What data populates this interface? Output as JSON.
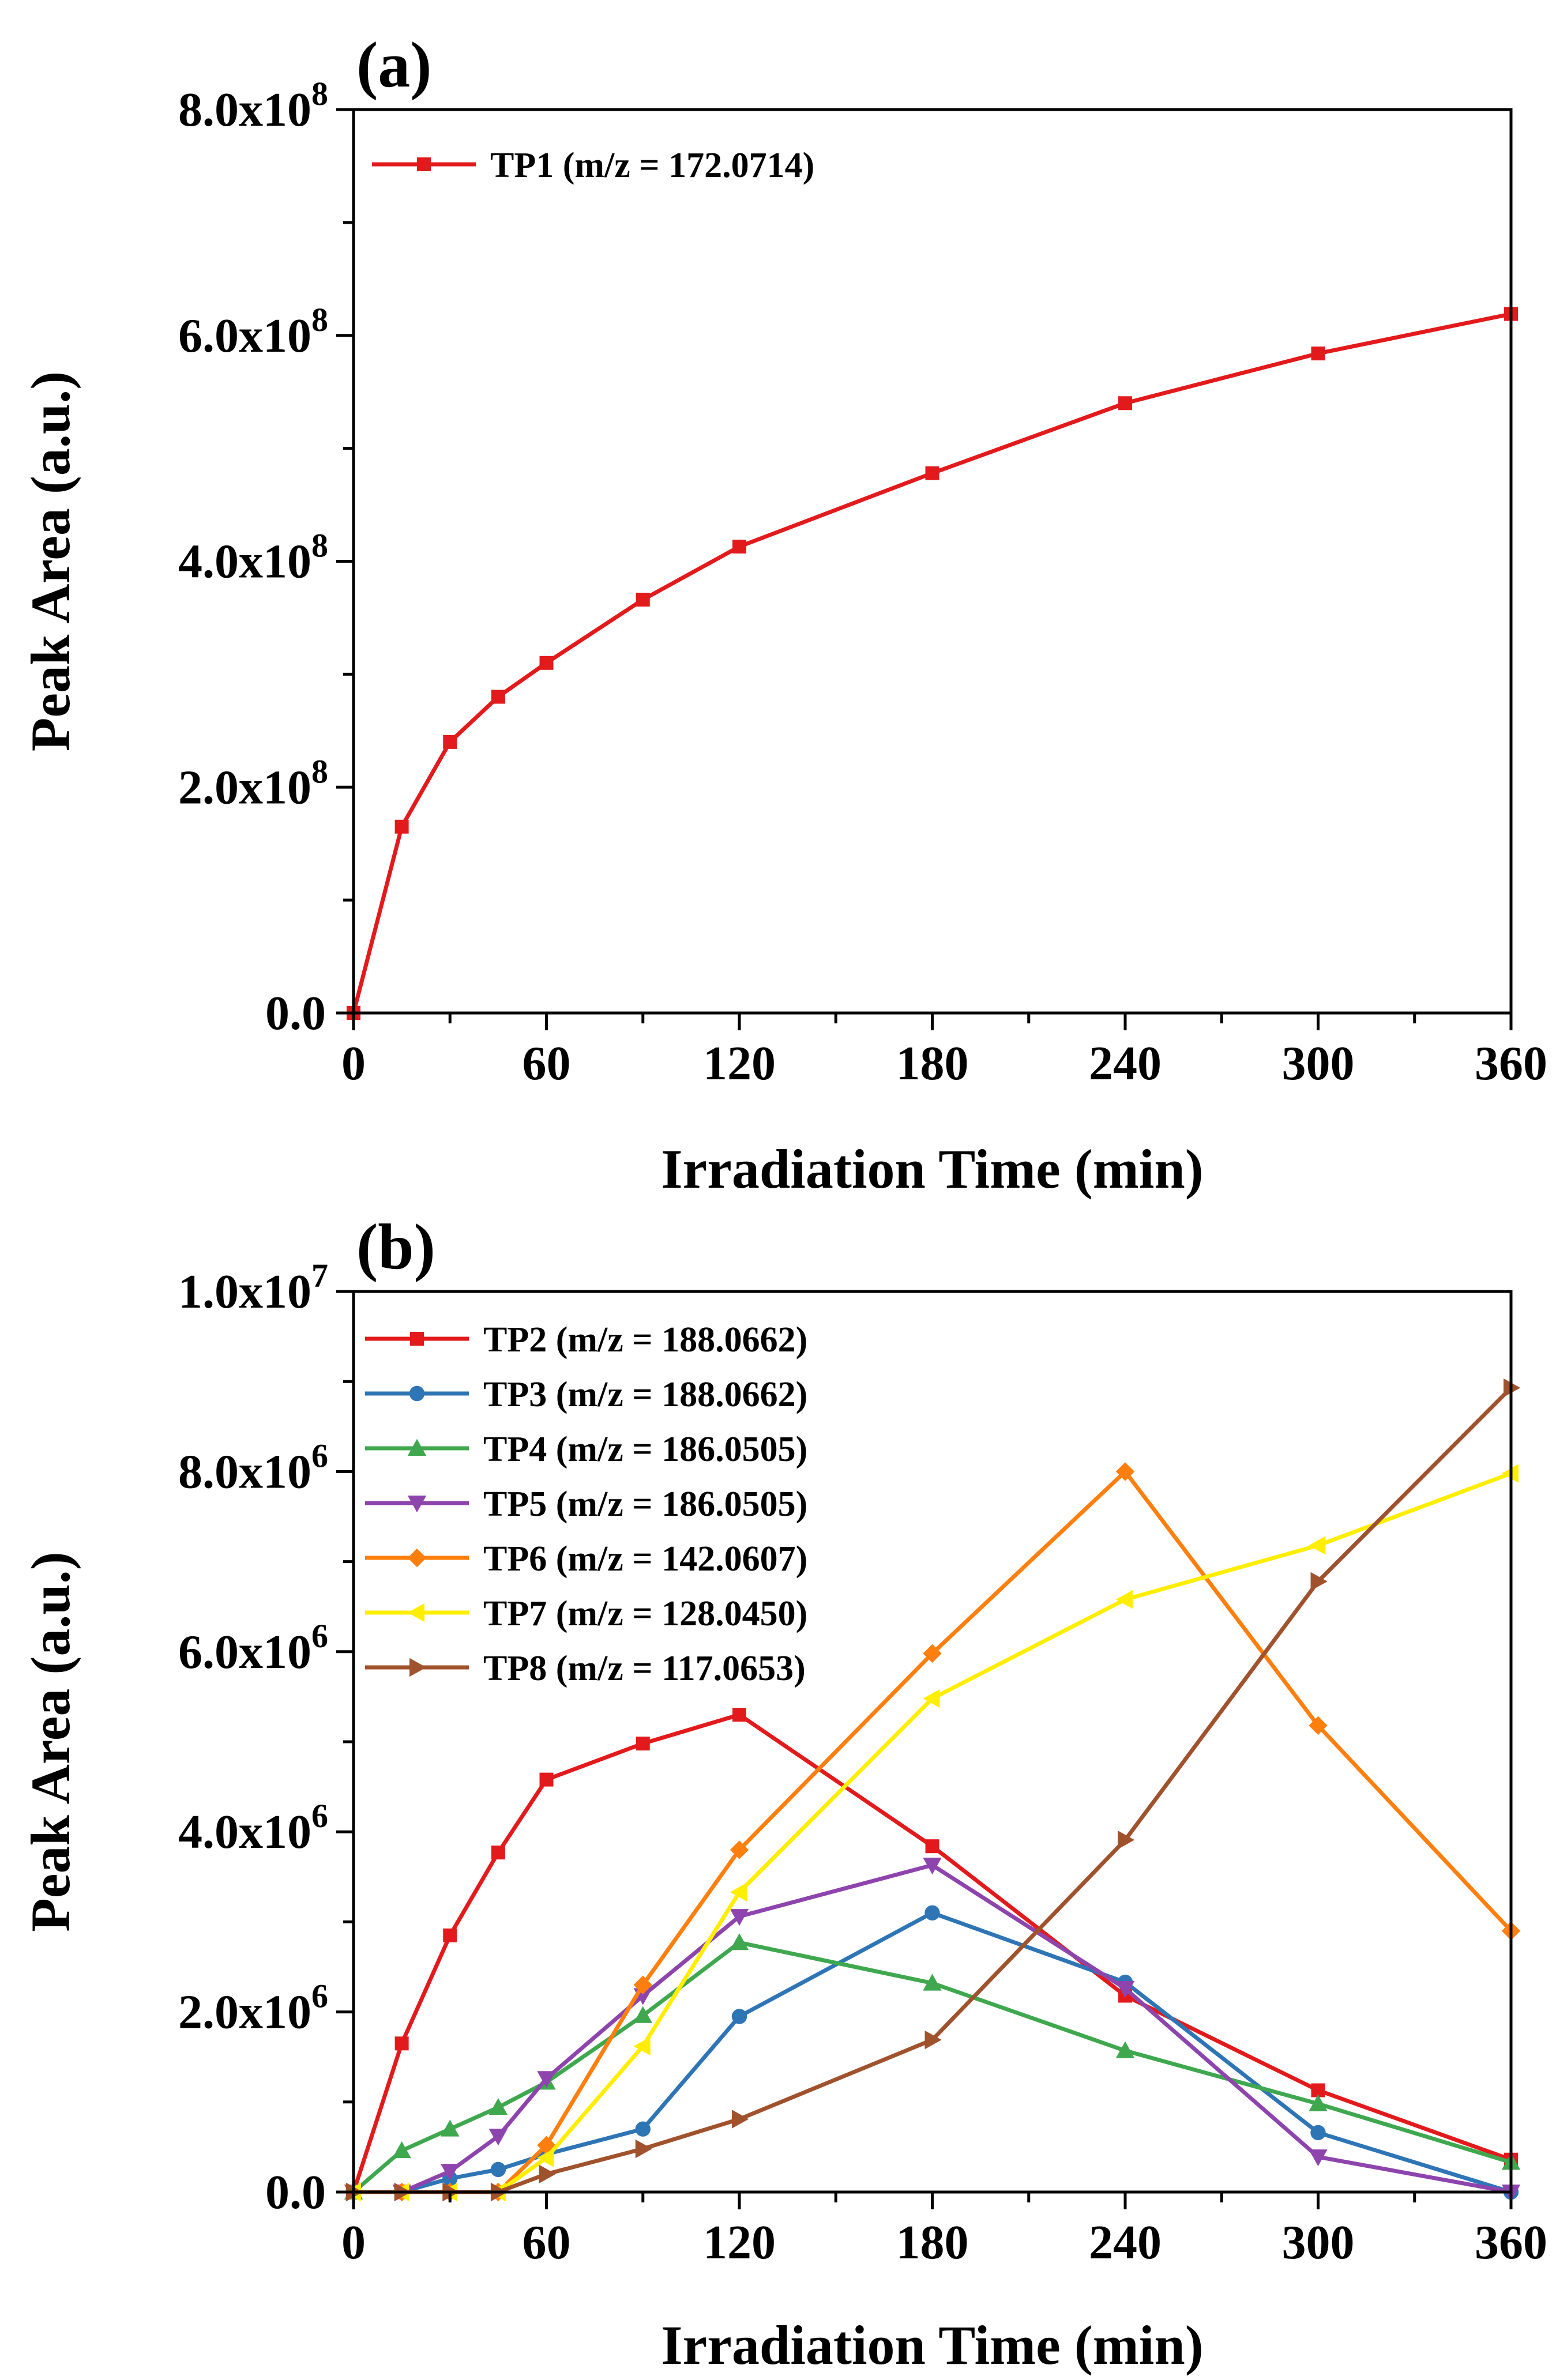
{
  "chart_data": [
    {
      "type": "line",
      "panel_label": "(a)",
      "xlabel": "Irradiation Time (min)",
      "ylabel": "Peak Area (a.u.)",
      "xlim": [
        0,
        360
      ],
      "ylim": [
        0,
        800000000
      ],
      "xticks": [
        0,
        60,
        120,
        180,
        240,
        300,
        360
      ],
      "xtick_labels": [
        "0",
        "60",
        "120",
        "180",
        "240",
        "300",
        "360"
      ],
      "yticks": [
        0,
        200000000,
        400000000,
        600000000,
        800000000
      ],
      "ytick_labels": [
        {
          "mantissa": "0.0",
          "exp": ""
        },
        {
          "mantissa": "2.0x10",
          "exp": "8"
        },
        {
          "mantissa": "4.0x10",
          "exp": "8"
        },
        {
          "mantissa": "6.0x10",
          "exp": "8"
        },
        {
          "mantissa": "8.0x10",
          "exp": "8"
        }
      ],
      "legend_position": "top-left",
      "x": [
        0,
        15,
        30,
        45,
        60,
        90,
        120,
        180,
        240,
        300,
        360
      ],
      "series": [
        {
          "name": "TP1 (m/z = 172.0714)",
          "color": "#e31a1c",
          "marker": "square",
          "values": [
            0,
            165000000,
            240000000,
            280000000,
            310000000,
            366000000,
            413000000,
            478000000,
            540000000,
            584000000,
            619000000
          ]
        }
      ]
    },
    {
      "type": "line",
      "panel_label": "(b)",
      "xlabel": "Irradiation Time (min)",
      "ylabel": "Peak Area (a.u.)",
      "xlim": [
        0,
        360
      ],
      "ylim": [
        0,
        10000000
      ],
      "xticks": [
        0,
        60,
        120,
        180,
        240,
        300,
        360
      ],
      "xtick_labels": [
        "0",
        "60",
        "120",
        "180",
        "240",
        "300",
        "360"
      ],
      "yticks": [
        0,
        2000000,
        4000000,
        6000000,
        8000000,
        10000000
      ],
      "ytick_labels": [
        {
          "mantissa": "0.0",
          "exp": ""
        },
        {
          "mantissa": "2.0x10",
          "exp": "6"
        },
        {
          "mantissa": "4.0x10",
          "exp": "6"
        },
        {
          "mantissa": "6.0x10",
          "exp": "6"
        },
        {
          "mantissa": "8.0x10",
          "exp": "6"
        },
        {
          "mantissa": "1.0x10",
          "exp": "7"
        }
      ],
      "legend_position": "top-left",
      "x": [
        0,
        15,
        30,
        45,
        60,
        90,
        120,
        180,
        240,
        300,
        360
      ],
      "series": [
        {
          "name": "TP2 (m/z = 188.0662)",
          "color": "#e31a1c",
          "marker": "square",
          "values": [
            0,
            1650000,
            2850000,
            3770000,
            4580000,
            4980000,
            5300000,
            3840000,
            2180000,
            1130000,
            360000
          ]
        },
        {
          "name": "TP3 (m/z = 188.0662)",
          "color": "#2e75b6",
          "marker": "circle",
          "values": [
            0,
            0,
            150000,
            250000,
            420000,
            700000,
            1950000,
            3100000,
            2330000,
            660000,
            0
          ]
        },
        {
          "name": "TP4 (m/z = 186.0505)",
          "color": "#3fa84f",
          "marker": "triangle-up",
          "values": [
            0,
            460000,
            700000,
            940000,
            1220000,
            1960000,
            2770000,
            2320000,
            1570000,
            980000,
            330000
          ]
        },
        {
          "name": "TP5 (m/z = 186.0505)",
          "color": "#8e44ad",
          "marker": "triangle-down",
          "values": [
            0,
            0,
            230000,
            620000,
            1260000,
            2180000,
            3060000,
            3630000,
            2260000,
            390000,
            0
          ]
        },
        {
          "name": "TP6 (m/z = 142.0607)",
          "color": "#ff7f0e",
          "marker": "diamond",
          "values": [
            0,
            0,
            0,
            0,
            520000,
            2300000,
            3800000,
            5980000,
            8000000,
            5180000,
            2900000
          ]
        },
        {
          "name": "TP7 (m/z = 128.0450)",
          "color": "#ffee00",
          "marker": "triangle-left",
          "values": [
            0,
            0,
            0,
            0,
            380000,
            1620000,
            3330000,
            5480000,
            6580000,
            7180000,
            7980000
          ]
        },
        {
          "name": "TP8 (m/z = 117.0653)",
          "color": "#a0522d",
          "marker": "triangle-right",
          "values": [
            0,
            0,
            0,
            0,
            200000,
            480000,
            810000,
            1690000,
            3910000,
            6780000,
            8930000
          ]
        }
      ]
    }
  ]
}
